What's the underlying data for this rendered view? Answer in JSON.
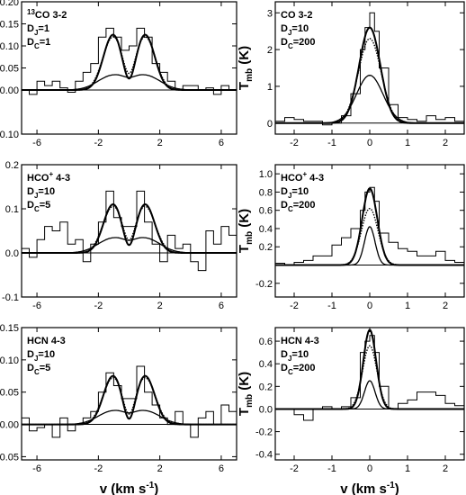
{
  "figure": {
    "ylabel_main": "T",
    "ylabel_sub": "mb",
    "ylabel_unit": "(K)",
    "xlabel": "v (km s",
    "xlabel_sup": "-1",
    "xlabel_end": ")"
  },
  "chart_data": [
    {
      "type": "line",
      "panel": "13CO 3-2, DJ=1, DC=1",
      "label_lines": [
        {
          "iso": "13",
          "main": "CO 3-2"
        },
        {
          "main": "D",
          "sub": "J",
          "rest": "=1"
        },
        {
          "main": "D",
          "sub": "C",
          "rest": "=1"
        }
      ],
      "xlim": [
        -7,
        7
      ],
      "ylim": [
        -0.1,
        0.2
      ],
      "xticks": [
        -6,
        -2,
        2,
        6
      ],
      "yticks": [
        -0.1,
        0.0,
        0.05,
        0.1,
        0.15,
        0.2
      ],
      "ytick_labels": [
        "-0.10",
        "0.00",
        "0.05",
        "0.10",
        "0.15",
        "0.20"
      ],
      "series": [
        {
          "style": "histogram",
          "x": [
            -7,
            -6.5,
            -6,
            -5.5,
            -5,
            -4.5,
            -4,
            -3.5,
            -3,
            -2.5,
            -2,
            -1.5,
            -1,
            -0.5,
            0,
            0.5,
            1,
            1.5,
            2,
            2.5,
            3,
            3.5,
            4,
            4.5,
            5,
            5.5,
            6,
            6.5
          ],
          "values": [
            0.0,
            -0.01,
            0.02,
            0.01,
            0.02,
            0.005,
            -0.005,
            0.02,
            0.04,
            0.06,
            0.12,
            0.14,
            0.12,
            0.09,
            0.1,
            0.14,
            0.12,
            0.06,
            0.04,
            0.02,
            0.0,
            0.01,
            0.01,
            0.0,
            0.005,
            -0.01,
            0.01,
            0.0
          ]
        },
        {
          "style": "model",
          "peak": 0.125,
          "center": 1.05,
          "sigma": 0.62,
          "dip": 0.7
        },
        {
          "style": "model",
          "peak": 0.12,
          "center": 1.05,
          "sigma": 0.66,
          "dip": 0.72,
          "dotted": true
        },
        {
          "style": "model",
          "peak": 0.032,
          "center": 1.1,
          "sigma": 0.95,
          "dip": 0.85
        }
      ]
    },
    {
      "type": "line",
      "panel": "CO 3-2, DJ=10, DC=200",
      "label_lines": [
        {
          "main": "CO 3-2"
        },
        {
          "main": "D",
          "sub": "J",
          "rest": "=10"
        },
        {
          "main": "D",
          "sub": "C",
          "rest": "=200"
        }
      ],
      "xlim": [
        -2.5,
        2.5
      ],
      "ylim": [
        -0.3,
        3.3
      ],
      "xticks": [
        -2,
        -1,
        0,
        1,
        2
      ],
      "yticks": [
        0,
        1,
        2,
        3
      ],
      "ytick_labels": [
        "0",
        "1",
        "2",
        "3"
      ],
      "series": [
        {
          "style": "histogram",
          "x": [
            -2.5,
            -2.25,
            -2,
            -1.75,
            -1.5,
            -1.25,
            -1,
            -0.75,
            -0.5,
            -0.25,
            -0.125,
            0,
            0.125,
            0.25,
            0.5,
            0.75,
            1,
            1.25,
            1.5,
            1.75,
            2,
            2.25
          ],
          "values": [
            0.05,
            0.15,
            0.1,
            0.05,
            0.05,
            -0.05,
            0.0,
            0.2,
            0.8,
            2.0,
            2.6,
            3.0,
            2.5,
            1.5,
            0.5,
            0.15,
            0.1,
            0.05,
            0.2,
            0.1,
            0.15,
            0.05
          ]
        },
        {
          "style": "gauss",
          "peak": 2.6,
          "sigma": 0.28
        },
        {
          "style": "gauss",
          "peak": 2.3,
          "sigma": 0.3,
          "dotted": true
        },
        {
          "style": "gauss",
          "peak": 1.3,
          "sigma": 0.35
        }
      ]
    },
    {
      "type": "line",
      "panel": "HCO+ 4-3, DJ=10, DC=5",
      "label_lines": [
        {
          "main": "HCO",
          "sup": "+",
          "rest": " 4-3"
        },
        {
          "main": "D",
          "sub": "J",
          "rest": "=10"
        },
        {
          "main": "D",
          "sub": "C",
          "rest": "=5"
        }
      ],
      "xlim": [
        -7,
        7
      ],
      "ylim": [
        -0.1,
        0.2
      ],
      "xticks": [
        -6,
        -2,
        2,
        6
      ],
      "yticks": [
        -0.1,
        0.0,
        0.1,
        0.2
      ],
      "ytick_labels": [
        "-0.1",
        "0.0",
        "0.1",
        "0.2"
      ],
      "series": [
        {
          "style": "histogram",
          "x": [
            -7,
            -6.5,
            -6,
            -5.5,
            -5,
            -4.5,
            -4,
            -3.5,
            -3,
            -2.5,
            -2,
            -1.5,
            -1,
            -0.5,
            0,
            0.5,
            1,
            1.5,
            2,
            2.5,
            3,
            3.5,
            4,
            4.5,
            5,
            5.5,
            6,
            6.5
          ],
          "values": [
            0.01,
            -0.01,
            0.03,
            0.06,
            0.05,
            0.07,
            0.02,
            0.03,
            -0.02,
            0.02,
            0.07,
            0.14,
            0.08,
            0.06,
            0.06,
            0.14,
            0.07,
            0.02,
            -0.02,
            0.04,
            0.01,
            0.02,
            -0.02,
            -0.04,
            0.05,
            0.02,
            0.06,
            0.04
          ]
        },
        {
          "style": "model",
          "peak": 0.11,
          "center": 1.05,
          "sigma": 0.62,
          "dip": 0.65
        },
        {
          "style": "model",
          "peak": 0.105,
          "center": 1.05,
          "sigma": 0.66,
          "dip": 0.68,
          "dotted": true
        },
        {
          "style": "model",
          "peak": 0.032,
          "center": 1.1,
          "sigma": 0.95,
          "dip": 0.85
        }
      ]
    },
    {
      "type": "line",
      "panel": "HCO+ 4-3, DJ=10, DC=200",
      "label_lines": [
        {
          "main": "HCO",
          "sup": "+",
          "rest": " 4-3"
        },
        {
          "main": "D",
          "sub": "J",
          "rest": "=10"
        },
        {
          "main": "D",
          "sub": "C",
          "rest": "=200"
        }
      ],
      "xlim": [
        -2.5,
        2.5
      ],
      "ylim": [
        -0.35,
        1.1
      ],
      "xticks": [
        -2,
        -1,
        0,
        1,
        2
      ],
      "yticks": [
        -0.2,
        0.2,
        0.4,
        0.6,
        0.8,
        1.0
      ],
      "ytick_labels": [
        "-0.2",
        "0.2",
        "0.4",
        "0.6",
        "0.8",
        "1.0"
      ],
      "series": [
        {
          "style": "histogram",
          "x": [
            -2.5,
            -2.25,
            -2,
            -1.75,
            -1.5,
            -1.25,
            -1,
            -0.75,
            -0.5,
            -0.25,
            -0.125,
            0,
            0.125,
            0.25,
            0.5,
            0.75,
            1,
            1.25,
            1.5,
            1.75,
            2,
            2.25
          ],
          "values": [
            0.02,
            0.0,
            0.03,
            0.05,
            0.1,
            0.1,
            0.22,
            0.3,
            0.4,
            0.6,
            0.8,
            0.85,
            0.7,
            0.35,
            0.25,
            0.18,
            0.15,
            0.1,
            0.1,
            0.15,
            0.05,
            0.03
          ]
        },
        {
          "style": "gauss",
          "peak": 0.84,
          "sigma": 0.2
        },
        {
          "style": "gauss",
          "peak": 0.62,
          "sigma": 0.22,
          "dotted": true
        },
        {
          "style": "gauss",
          "peak": 0.42,
          "sigma": 0.14
        }
      ]
    },
    {
      "type": "line",
      "panel": "HCN 4-3, DJ=10, DC=5",
      "label_lines": [
        {
          "main": "HCN 4-3"
        },
        {
          "main": "D",
          "sub": "J",
          "rest": "=10"
        },
        {
          "main": "D",
          "sub": "C",
          "rest": "=5"
        }
      ],
      "xlim": [
        -7,
        7
      ],
      "ylim": [
        -0.055,
        0.15
      ],
      "xticks": [
        -6,
        -2,
        2,
        6
      ],
      "yticks": [
        -0.05,
        0.0,
        0.05,
        0.1,
        0.15
      ],
      "ytick_labels": [
        "-0.05",
        "0.00",
        "0.05",
        "0.10",
        "0.15"
      ],
      "series": [
        {
          "style": "histogram",
          "x": [
            -7,
            -6.5,
            -6,
            -5.5,
            -5,
            -4.5,
            -4,
            -3.5,
            -3,
            -2.5,
            -2,
            -1.5,
            -1,
            -0.5,
            0,
            0.5,
            1,
            1.5,
            2,
            2.5,
            3,
            3.5,
            4,
            4.5,
            5,
            5.5,
            6,
            6.5
          ],
          "values": [
            0.01,
            -0.01,
            -0.005,
            0.0,
            -0.02,
            0.01,
            -0.01,
            0.0,
            0.01,
            0.02,
            0.05,
            0.08,
            0.06,
            0.04,
            0.04,
            0.09,
            0.05,
            0.03,
            0.01,
            0.0,
            0.02,
            0.0,
            -0.02,
            0.01,
            0.02,
            0.0,
            0.03,
            0.02
          ]
        },
        {
          "style": "model",
          "peak": 0.075,
          "center": 1.05,
          "sigma": 0.62,
          "dip": 0.6
        },
        {
          "style": "model",
          "peak": 0.072,
          "center": 1.05,
          "sigma": 0.66,
          "dip": 0.62,
          "dotted": true
        },
        {
          "style": "model",
          "peak": 0.02,
          "center": 1.1,
          "sigma": 0.95,
          "dip": 0.85
        }
      ]
    },
    {
      "type": "line",
      "panel": "HCN 4-3, DJ=10, DC=200",
      "label_lines": [
        {
          "main": "HCN 4-3"
        },
        {
          "main": "D",
          "sub": "J",
          "rest": "=10"
        },
        {
          "main": "D",
          "sub": "C",
          "rest": "=200"
        }
      ],
      "xlim": [
        -2.5,
        2.5
      ],
      "ylim": [
        -0.45,
        0.72
      ],
      "xticks": [
        -2,
        -1,
        0,
        1,
        2
      ],
      "yticks": [
        -0.4,
        -0.2,
        0.0,
        0.2,
        0.4,
        0.6
      ],
      "ytick_labels": [
        "-0.4",
        "-0.2",
        "0.0",
        "0.2",
        "0.4",
        "0.6"
      ],
      "series": [
        {
          "style": "histogram",
          "x": [
            -2.5,
            -2.25,
            -2,
            -1.75,
            -1.5,
            -1.25,
            -1,
            -0.75,
            -0.5,
            -0.25,
            -0.125,
            0,
            0.125,
            0.25,
            0.5,
            0.75,
            1,
            1.25,
            1.5,
            1.75,
            2,
            2.25
          ],
          "values": [
            0.0,
            0.0,
            -0.05,
            -0.1,
            0.0,
            0.02,
            0.0,
            0.02,
            0.1,
            0.5,
            0.6,
            0.65,
            0.5,
            0.2,
            0.0,
            0.05,
            0.08,
            0.15,
            0.15,
            0.12,
            0.05,
            0.03
          ]
        },
        {
          "style": "gauss",
          "peak": 0.7,
          "sigma": 0.17
        },
        {
          "style": "gauss",
          "peak": 0.56,
          "sigma": 0.19,
          "dotted": true
        },
        {
          "style": "gauss",
          "peak": 0.25,
          "sigma": 0.14
        }
      ]
    }
  ]
}
